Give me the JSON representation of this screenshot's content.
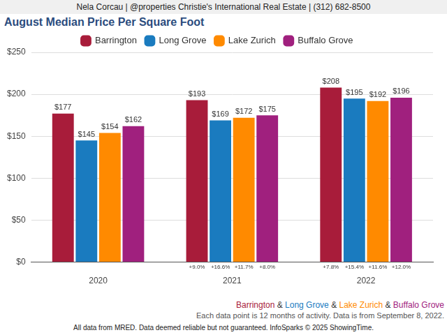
{
  "chart_data": {
    "type": "bar",
    "header": "Nela Corcau | @properties Christie's International Real Estate | (312) 682-8500",
    "title": "August Median Price Per Square Foot",
    "categories": [
      "2020",
      "2021",
      "2022"
    ],
    "series": [
      {
        "name": "Barrington",
        "color": "#a81c3a",
        "values": [
          177,
          193,
          208
        ],
        "value_labels": [
          "$177",
          "$193",
          "$208"
        ],
        "change_labels": [
          null,
          "+9.0%",
          "+7.8%"
        ]
      },
      {
        "name": "Long Grove",
        "color": "#1a7bbf",
        "values": [
          145,
          169,
          195
        ],
        "value_labels": [
          "$145",
          "$169",
          "$195"
        ],
        "change_labels": [
          null,
          "+16.6%",
          "+15.4%"
        ]
      },
      {
        "name": "Lake Zurich",
        "color": "#ff8a00",
        "values": [
          154,
          172,
          192
        ],
        "value_labels": [
          "$154",
          "$172",
          "$192"
        ],
        "change_labels": [
          null,
          "+11.7%",
          "+11.6%"
        ]
      },
      {
        "name": "Buffalo Grove",
        "color": "#a0207e",
        "values": [
          162,
          175,
          196
        ],
        "value_labels": [
          "$162",
          "$175",
          "$196"
        ],
        "change_labels": [
          null,
          "+8.0%",
          "+12.0%"
        ]
      }
    ],
    "ylim": [
      0,
      250
    ],
    "yticks": [
      {
        "value": 0,
        "label": "$0"
      },
      {
        "value": 50,
        "label": "$50"
      },
      {
        "value": 100,
        "label": "$100"
      },
      {
        "value": 150,
        "label": "$150"
      },
      {
        "value": 200,
        "label": "$200"
      },
      {
        "value": 250,
        "label": "$250"
      }
    ],
    "grid": true,
    "legend": "top",
    "data_labels": true,
    "caption_separator": " & ",
    "note": "Each data point is 12 months of activity. Data is from September 8, 2022.",
    "source": "All data from MRED. Data deemed reliable but not guaranteed. InfoSparks © 2025 ShowingTime."
  }
}
